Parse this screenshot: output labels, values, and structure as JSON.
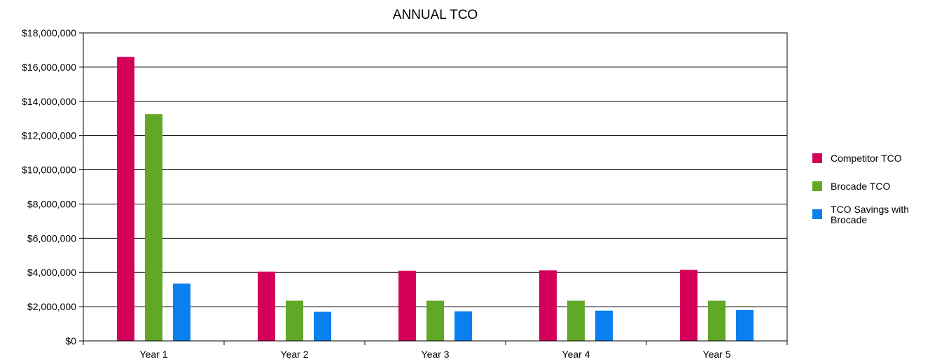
{
  "chart_data": {
    "type": "bar",
    "title": "ANNUAL TCO",
    "xlabel": "",
    "ylabel": "",
    "categories": [
      "Year 1",
      "Year 2",
      "Year 3",
      "Year 4",
      "Year 5"
    ],
    "series": [
      {
        "name": "Competitor TCO",
        "color": "#d4005a",
        "values": [
          16600000,
          4050000,
          4100000,
          4120000,
          4150000
        ]
      },
      {
        "name": "Brocade TCO",
        "color": "#62a827",
        "values": [
          13250000,
          2350000,
          2350000,
          2350000,
          2350000
        ]
      },
      {
        "name": "TCO Savings with Brocade",
        "color": "#0a7ff0",
        "values": [
          3350000,
          1700000,
          1730000,
          1770000,
          1800000
        ]
      }
    ],
    "ylim": [
      0,
      18000000
    ],
    "yticks": [
      0,
      2000000,
      4000000,
      6000000,
      8000000,
      10000000,
      12000000,
      14000000,
      16000000,
      18000000
    ],
    "ytick_labels": [
      "$0",
      "$2,000,000",
      "$4,000,000",
      "$6,000,000",
      "$8,000,000",
      "$10,000,000",
      "$12,000,000",
      "$14,000,000",
      "$16,000,000",
      "$18,000,000"
    ],
    "grid": true,
    "legend_position": "right"
  }
}
